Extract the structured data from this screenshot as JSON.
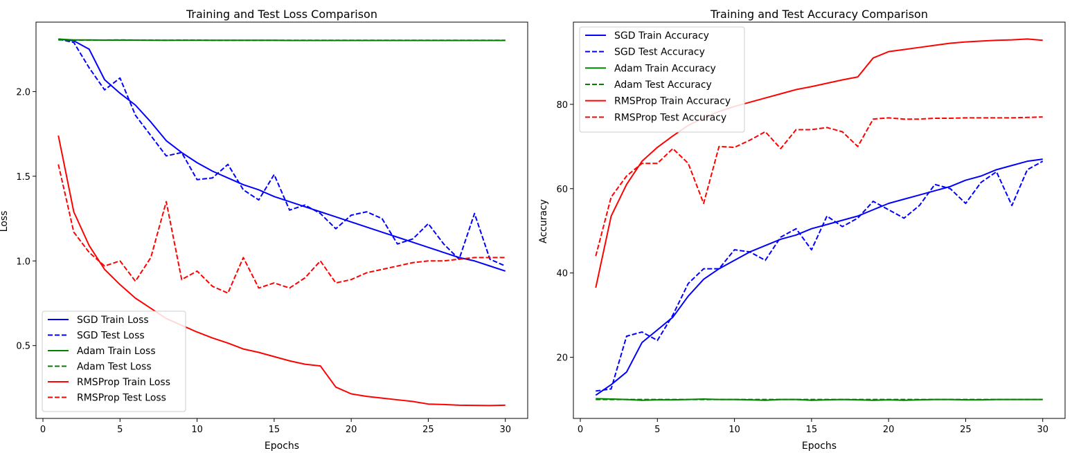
{
  "chart_data": [
    {
      "type": "line",
      "title": "Training and Test Loss Comparison",
      "xlabel": "Epochs",
      "ylabel": "Loss",
      "xlim": [
        -0.45,
        31.45
      ],
      "ylim": [
        0.07,
        2.41
      ],
      "xticks": [
        0,
        5,
        10,
        15,
        20,
        25,
        30
      ],
      "yticks": [
        0.5,
        1.0,
        1.5,
        2.0
      ],
      "ytick_labels": [
        "0.5",
        "1.0",
        "1.5",
        "2.0"
      ],
      "legend_position": "lower-left",
      "x": [
        1,
        2,
        3,
        4,
        5,
        6,
        7,
        8,
        9,
        10,
        11,
        12,
        13,
        14,
        15,
        16,
        17,
        18,
        19,
        20,
        21,
        22,
        23,
        24,
        25,
        26,
        27,
        28,
        29,
        30
      ],
      "series": [
        {
          "name": "SGD Train Loss",
          "color": "#0000ff",
          "style": "solid",
          "values": [
            2.31,
            2.3,
            2.25,
            2.07,
            1.99,
            1.92,
            1.82,
            1.71,
            1.64,
            1.58,
            1.53,
            1.49,
            1.45,
            1.42,
            1.38,
            1.35,
            1.32,
            1.29,
            1.26,
            1.23,
            1.2,
            1.17,
            1.14,
            1.11,
            1.08,
            1.05,
            1.02,
            1.0,
            0.97,
            0.94
          ]
        },
        {
          "name": "SGD Test Loss",
          "color": "#0000ff",
          "style": "dashed",
          "values": [
            2.31,
            2.29,
            2.14,
            2.01,
            2.08,
            1.86,
            1.74,
            1.62,
            1.64,
            1.48,
            1.49,
            1.57,
            1.42,
            1.36,
            1.51,
            1.3,
            1.33,
            1.28,
            1.19,
            1.27,
            1.29,
            1.25,
            1.1,
            1.13,
            1.22,
            1.1,
            1.01,
            1.28,
            1.01,
            0.97
          ]
        },
        {
          "name": "Adam Train Loss",
          "color": "#008000",
          "style": "solid",
          "values": [
            2.31,
            2.305,
            2.305,
            2.304,
            2.304,
            2.304,
            2.303,
            2.303,
            2.303,
            2.303,
            2.303,
            2.303,
            2.303,
            2.303,
            2.303,
            2.302,
            2.302,
            2.302,
            2.302,
            2.302,
            2.302,
            2.302,
            2.302,
            2.302,
            2.302,
            2.302,
            2.302,
            2.302,
            2.302,
            2.302
          ]
        },
        {
          "name": "Adam Test Loss",
          "color": "#008000",
          "style": "dashed",
          "values": [
            2.305,
            2.304,
            2.304,
            2.304,
            2.305,
            2.304,
            2.304,
            2.303,
            2.304,
            2.304,
            2.303,
            2.303,
            2.303,
            2.303,
            2.303,
            2.303,
            2.303,
            2.303,
            2.303,
            2.303,
            2.303,
            2.303,
            2.303,
            2.303,
            2.303,
            2.303,
            2.303,
            2.303,
            2.303,
            2.303
          ]
        },
        {
          "name": "RMSProp Train Loss",
          "color": "#ff0000",
          "style": "solid",
          "values": [
            1.74,
            1.29,
            1.09,
            0.95,
            0.86,
            0.78,
            0.72,
            0.66,
            0.62,
            0.58,
            0.545,
            0.515,
            0.48,
            0.46,
            0.435,
            0.41,
            0.39,
            0.38,
            0.255,
            0.215,
            0.2,
            0.19,
            0.18,
            0.17,
            0.155,
            0.152,
            0.148,
            0.147,
            0.146,
            0.148
          ]
        },
        {
          "name": "RMSProp Test Loss",
          "color": "#ff0000",
          "style": "dashed",
          "values": [
            1.57,
            1.17,
            1.05,
            0.97,
            1.0,
            0.88,
            1.02,
            1.35,
            0.89,
            0.94,
            0.85,
            0.81,
            1.02,
            0.84,
            0.87,
            0.84,
            0.9,
            1.0,
            0.87,
            0.89,
            0.93,
            0.95,
            0.97,
            0.99,
            1.0,
            1.0,
            1.01,
            1.02,
            1.02,
            1.02
          ]
        }
      ]
    },
    {
      "type": "line",
      "title": "Training and Test Accuracy Comparison",
      "xlabel": "Epochs",
      "ylabel": "Accuracy",
      "xlim": [
        -0.45,
        31.45
      ],
      "ylim": [
        5.5,
        99.5
      ],
      "xticks": [
        0,
        5,
        10,
        15,
        20,
        25,
        30
      ],
      "yticks": [
        20,
        40,
        60,
        80
      ],
      "ytick_labels": [
        "20",
        "40",
        "60",
        "80"
      ],
      "legend_position": "upper-left",
      "x": [
        1,
        2,
        3,
        4,
        5,
        6,
        7,
        8,
        9,
        10,
        11,
        12,
        13,
        14,
        15,
        16,
        17,
        18,
        19,
        20,
        21,
        22,
        23,
        24,
        25,
        26,
        27,
        28,
        29,
        30
      ],
      "series": [
        {
          "name": "SGD Train Accuracy",
          "color": "#0000ff",
          "style": "solid",
          "values": [
            11,
            13.5,
            16.5,
            23.5,
            26.5,
            29.5,
            34.5,
            38.5,
            41,
            43,
            45,
            46.5,
            48,
            49,
            50.5,
            51.5,
            52.5,
            53.5,
            55,
            56.5,
            57.5,
            58.5,
            59.5,
            60.5,
            62,
            63,
            64.5,
            65.5,
            66.5,
            67
          ]
        },
        {
          "name": "SGD Test Accuracy",
          "color": "#0000ff",
          "style": "dashed",
          "values": [
            12,
            12.5,
            25,
            26,
            24,
            30,
            37.5,
            41,
            41,
            45.5,
            45,
            43,
            48.5,
            50.5,
            45.5,
            53.5,
            51,
            53,
            57,
            55,
            53,
            56,
            61,
            60,
            56.5,
            61.5,
            64,
            56,
            64.5,
            66.5
          ]
        },
        {
          "name": "Adam Train Accuracy",
          "color": "#008000",
          "style": "solid",
          "values": [
            10.2,
            10.1,
            10.0,
            9.8,
            9.9,
            9.9,
            10.0,
            10.1,
            10.0,
            10.0,
            9.9,
            9.8,
            10.0,
            10.0,
            9.8,
            9.9,
            10.0,
            9.9,
            9.8,
            9.9,
            9.8,
            9.9,
            10.0,
            10.0,
            9.9,
            9.9,
            10.0,
            10.0,
            10.0,
            10.0
          ]
        },
        {
          "name": "Adam Test Accuracy",
          "color": "#008000",
          "style": "dashed",
          "values": [
            10.0,
            10.0,
            10.0,
            10.0,
            10.0,
            10.0,
            10.0,
            10.0,
            10.0,
            10.0,
            10.0,
            10.0,
            10.0,
            10.0,
            10.0,
            10.0,
            10.0,
            10.0,
            10.0,
            10.0,
            10.0,
            10.0,
            10.0,
            10.0,
            10.0,
            10.0,
            10.0,
            10.0,
            10.0,
            10.0
          ]
        },
        {
          "name": "RMSProp Train Accuracy",
          "color": "#ff0000",
          "style": "solid",
          "values": [
            36.5,
            53.5,
            61,
            66.5,
            69.8,
            72.5,
            75,
            76.8,
            78.3,
            79.5,
            80.5,
            81.5,
            82.5,
            83.5,
            84.2,
            85,
            85.8,
            86.5,
            91,
            92.5,
            93,
            93.5,
            94,
            94.5,
            94.8,
            95,
            95.2,
            95.3,
            95.5,
            95.2
          ]
        },
        {
          "name": "RMSProp Test Accuracy",
          "color": "#ff0000",
          "style": "dashed",
          "values": [
            44,
            58,
            63,
            66,
            66,
            69.5,
            66,
            56.5,
            70,
            69.8,
            71.5,
            73.5,
            69.5,
            74,
            74,
            74.5,
            73.5,
            70,
            76.5,
            76.8,
            76.5,
            76.5,
            76.7,
            76.7,
            76.8,
            76.8,
            76.8,
            76.8,
            76.9,
            77
          ]
        }
      ]
    }
  ]
}
